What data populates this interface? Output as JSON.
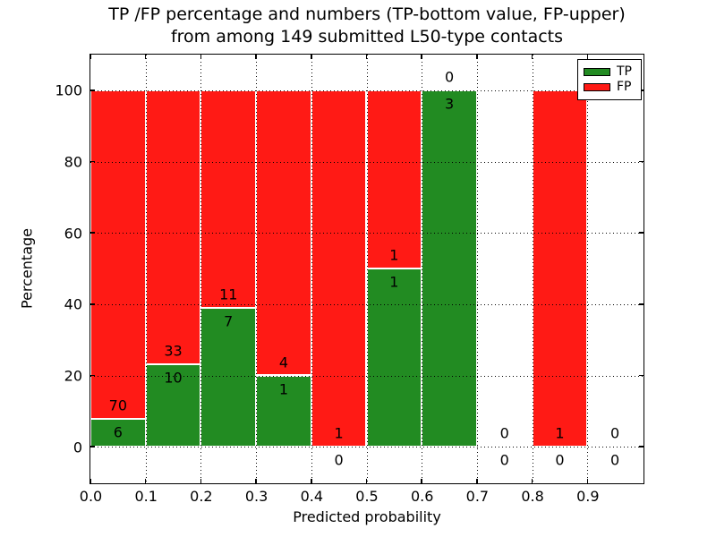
{
  "chart_data": {
    "type": "bar",
    "stacked": true,
    "orientation": "vertical",
    "title_line1": "TP /FP percentage and numbers (TP-bottom value, FP-upper)",
    "title_line2": "from among 149 submitted L50-type contacts",
    "xlabel": "Predicted probability",
    "ylabel": "Percentage",
    "xlim": [
      0.0,
      1.0
    ],
    "ylim": [
      -10,
      110
    ],
    "grid": "dotted",
    "xticks": [
      {
        "value": 0.0,
        "label": "0.0"
      },
      {
        "value": 0.1,
        "label": "0.1"
      },
      {
        "value": 0.2,
        "label": "0.2"
      },
      {
        "value": 0.3,
        "label": "0.3"
      },
      {
        "value": 0.4,
        "label": "0.4"
      },
      {
        "value": 0.5,
        "label": "0.5"
      },
      {
        "value": 0.6,
        "label": "0.6"
      },
      {
        "value": 0.7,
        "label": "0.7"
      },
      {
        "value": 0.8,
        "label": "0.8"
      },
      {
        "value": 0.9,
        "label": "0.9"
      }
    ],
    "yticks": [
      {
        "value": 0,
        "label": "0"
      },
      {
        "value": 20,
        "label": "20"
      },
      {
        "value": 40,
        "label": "40"
      },
      {
        "value": 60,
        "label": "60"
      },
      {
        "value": 80,
        "label": "80"
      },
      {
        "value": 100,
        "label": "100"
      }
    ],
    "legend": {
      "position": "upper-right",
      "entries": [
        {
          "label": "TP",
          "color": "#228b22"
        },
        {
          "label": "FP",
          "color": "#ff1a15"
        }
      ]
    },
    "bins": [
      {
        "x_start": 0.0,
        "x_end": 0.1,
        "tp": 6,
        "fp": 70,
        "tp_pct": 7.9
      },
      {
        "x_start": 0.1,
        "x_end": 0.2,
        "tp": 10,
        "fp": 33,
        "tp_pct": 23.3
      },
      {
        "x_start": 0.2,
        "x_end": 0.3,
        "tp": 7,
        "fp": 11,
        "tp_pct": 38.9
      },
      {
        "x_start": 0.3,
        "x_end": 0.4,
        "tp": 1,
        "fp": 4,
        "tp_pct": 20.0
      },
      {
        "x_start": 0.4,
        "x_end": 0.5,
        "tp": 0,
        "fp": 1,
        "tp_pct": 0.0
      },
      {
        "x_start": 0.5,
        "x_end": 0.6,
        "tp": 1,
        "fp": 1,
        "tp_pct": 50.0
      },
      {
        "x_start": 0.6,
        "x_end": 0.7,
        "tp": 3,
        "fp": 0,
        "tp_pct": 100.0
      },
      {
        "x_start": 0.7,
        "x_end": 0.8,
        "tp": 0,
        "fp": 0,
        "tp_pct": 0.0
      },
      {
        "x_start": 0.8,
        "x_end": 0.9,
        "tp": 0,
        "fp": 1,
        "tp_pct": 0.0
      },
      {
        "x_start": 0.9,
        "x_end": 1.0,
        "tp": 0,
        "fp": 0,
        "tp_pct": 0.0
      }
    ]
  }
}
